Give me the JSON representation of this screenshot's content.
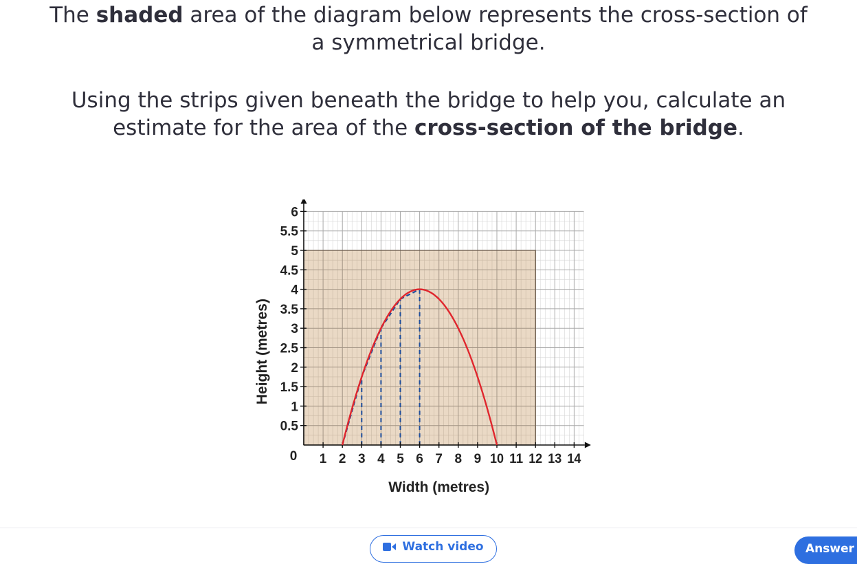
{
  "question": {
    "line1_a": "The ",
    "line1_bold": "shaded",
    "line1_b": " area of the diagram below represents the cross-section of",
    "line1_c": "a symmetrical bridge.",
    "line2_a": "Using the strips given beneath the bridge to help you, calculate an",
    "line2_b": "estimate for the area of the ",
    "line2_bold": "cross-section of the bridge",
    "line2_c": "."
  },
  "chart_data": {
    "type": "area",
    "xlabel": "Width (metres)",
    "ylabel": "Height (metres)",
    "xlim": [
      0,
      14.5
    ],
    "ylim": [
      0,
      6.2
    ],
    "x_ticks": [
      1,
      2,
      3,
      4,
      5,
      6,
      7,
      8,
      9,
      10,
      11,
      12,
      13,
      14
    ],
    "y_ticks": [
      0.5,
      1,
      1.5,
      2,
      2.5,
      3,
      3.5,
      4,
      4.5,
      5,
      5.5,
      6
    ],
    "y_tick_labels": [
      "0.5",
      "1",
      "1.5",
      "2",
      "2.5",
      "3",
      "3.5",
      "4",
      "4.5",
      "5",
      "5.5",
      "6"
    ],
    "origin_label": "0",
    "grid": true,
    "shaded_rectangle": {
      "x": [
        0,
        12
      ],
      "y": [
        0,
        5
      ],
      "color": "#ead9c5"
    },
    "curve": {
      "x": [
        2,
        3,
        4,
        5,
        6,
        7,
        8,
        9,
        10
      ],
      "y": [
        0,
        1.75,
        3,
        3.75,
        4,
        3.75,
        3,
        1.75,
        0
      ],
      "color": "#e0262d"
    },
    "strips": {
      "x": [
        2,
        3,
        4,
        5,
        6
      ],
      "y": [
        0,
        1.75,
        3,
        3.75,
        4
      ],
      "color": "#1f4e9c"
    }
  },
  "buttons": {
    "watch_video": "Watch video",
    "answer": "Answer"
  },
  "colors": {
    "accent": "#2e6fe0",
    "curve": "#e0262d",
    "strips": "#1f4e9c",
    "shade": "#ead9c5"
  }
}
